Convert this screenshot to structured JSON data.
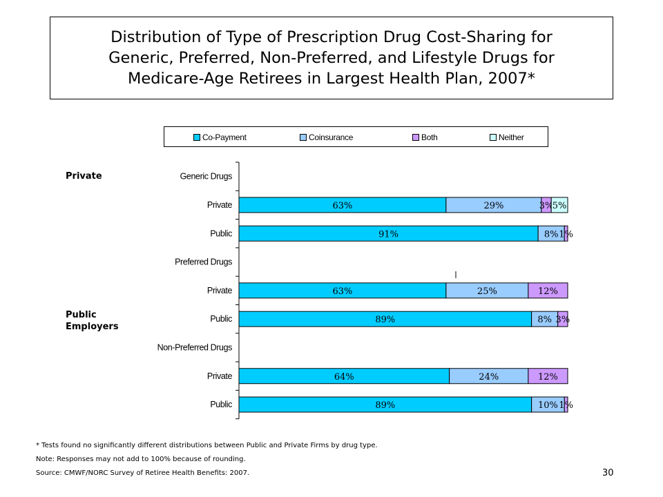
{
  "title": "Distribution of Type of Prescription Drug Cost-Sharing for\nGeneric, Preferred, Non-Preferred, and Lifestyle Drugs for\nMedicare-Age Retirees in Largest Health Plan, 2007*",
  "group_labels": {
    "private": "Private",
    "public": "Public\nEmployers"
  },
  "chart_data": {
    "type": "bar",
    "orientation": "horizontal",
    "stacked": true,
    "categories": [
      "Generic Drugs",
      "Private",
      "Public",
      "Preferred Drugs",
      "Private",
      "Public",
      "Non-Preferred Drugs",
      "Private",
      "Public"
    ],
    "series": [
      {
        "name": "Co-Payment",
        "color": "#00ccff",
        "values": [
          null,
          63,
          91,
          null,
          63,
          89,
          null,
          64,
          89
        ],
        "labels": [
          "",
          "63%",
          "91%",
          "",
          "63%",
          "89%",
          "",
          "64%",
          "89%"
        ]
      },
      {
        "name": "Coinsurance",
        "color": "#99ccff",
        "values": [
          null,
          29,
          8,
          null,
          25,
          8,
          null,
          24,
          10
        ],
        "labels": [
          "",
          "29%",
          "8%",
          "",
          "25%",
          "8%",
          "",
          "24%",
          "10%"
        ]
      },
      {
        "name": "Both",
        "color": "#cc99ff",
        "values": [
          null,
          3,
          1,
          null,
          12,
          3,
          null,
          12,
          1
        ],
        "labels": [
          "",
          "3%",
          "1%",
          "",
          "12%",
          "3%",
          "",
          "12%",
          "1%"
        ]
      },
      {
        "name": "Neither",
        "color": "#ccffff",
        "values": [
          null,
          5,
          null,
          null,
          null,
          null,
          null,
          null,
          null
        ],
        "labels": [
          "",
          "5%",
          "",
          "",
          "",
          "",
          "",
          "",
          ""
        ]
      }
    ],
    "xlim": [
      0,
      100
    ],
    "legend_position": "top",
    "grid": false
  },
  "footnotes": [
    "* Tests found no significantly different distributions between Public and Private Firms by drug type.",
    "Note: Responses may not add to 100% because of rounding.",
    "Source: CMWF/NORC Survey of Retiree Health Benefits: 2007."
  ],
  "page_number": "30"
}
